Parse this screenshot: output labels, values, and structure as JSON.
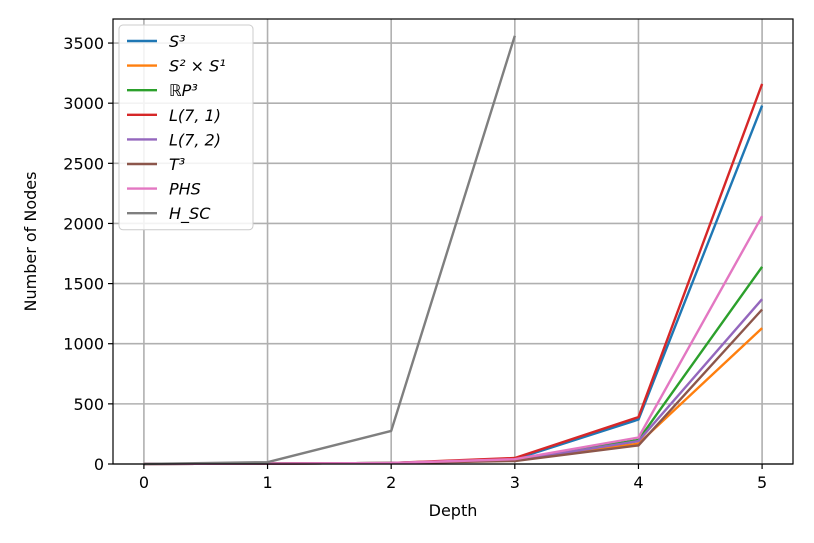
{
  "chart_data": {
    "type": "line",
    "title": "",
    "xlabel": "Depth",
    "ylabel": "Number of Nodes",
    "x": [
      0,
      1,
      2,
      3,
      4,
      5
    ],
    "xlim": [
      -0.25,
      5.25
    ],
    "ylim": [
      0,
      3700
    ],
    "xticks": [
      0,
      1,
      2,
      3,
      4,
      5
    ],
    "yticks": [
      0,
      500,
      1000,
      1500,
      2000,
      2500,
      3000,
      3500
    ],
    "grid": true,
    "legend_position": "top-left",
    "series": [
      {
        "name": "S³",
        "color": "#1f77b4",
        "x": [
          0,
          1,
          2,
          3,
          4,
          5
        ],
        "values": [
          1,
          3,
          8,
          40,
          370,
          2980
        ]
      },
      {
        "name": "S² × S¹",
        "color": "#ff7f0e",
        "x": [
          0,
          1,
          2,
          3,
          4,
          5
        ],
        "values": [
          1,
          3,
          8,
          30,
          170,
          1130
        ]
      },
      {
        "name": "ℝP³",
        "color": "#2ca02c",
        "x": [
          0,
          1,
          2,
          3,
          4,
          5
        ],
        "values": [
          1,
          3,
          8,
          35,
          200,
          1640
        ]
      },
      {
        "name": "L(7, 1)",
        "color": "#d62728",
        "x": [
          0,
          1,
          2,
          3,
          4,
          5
        ],
        "values": [
          1,
          3,
          8,
          50,
          390,
          3160
        ]
      },
      {
        "name": "L(7, 2)",
        "color": "#9467bd",
        "x": [
          0,
          1,
          2,
          3,
          4,
          5
        ],
        "values": [
          1,
          3,
          8,
          30,
          190,
          1370
        ]
      },
      {
        "name": "T³",
        "color": "#8c564b",
        "x": [
          0,
          1,
          2,
          3,
          4,
          5
        ],
        "values": [
          1,
          3,
          8,
          25,
          155,
          1285
        ]
      },
      {
        "name": "PHS",
        "color": "#e377c2",
        "x": [
          0,
          1,
          2,
          3,
          4,
          5
        ],
        "values": [
          1,
          3,
          8,
          40,
          220,
          2060
        ]
      },
      {
        "name": "H_SC",
        "color": "#7f7f7f",
        "x": [
          0,
          1,
          2,
          3
        ],
        "values": [
          1,
          15,
          275,
          3560
        ]
      }
    ]
  }
}
